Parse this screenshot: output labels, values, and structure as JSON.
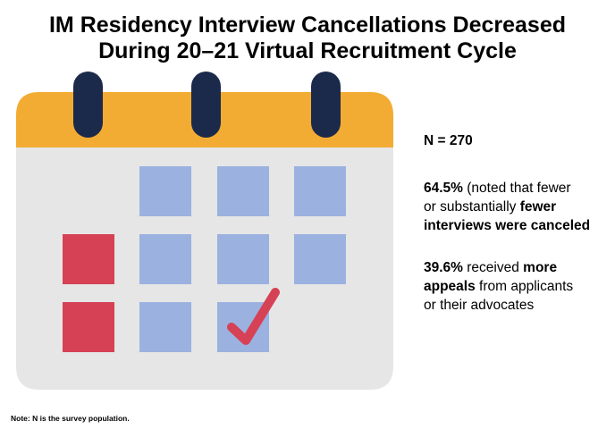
{
  "title": {
    "line1": "IM Residency Interview Cancellations Decreased",
    "line2": "During 20–21 Virtual Recruitment Cycle"
  },
  "stats": {
    "n_label": "N = 270",
    "stat1": {
      "value": "64.5%",
      "pre": " (noted that fewer",
      "line2_pre": "or substantially ",
      "line2_bold": "fewer",
      "line3_bold": "interviews were canceled"
    },
    "stat2": {
      "value": "39.6%",
      "pre": " received ",
      "bold1": "more",
      "line2_bold": "appeals",
      "line2_rest": " from applicants",
      "line3": "or their advocates"
    }
  },
  "note": "Note: N is the survey population.",
  "colors": {
    "calendar_header": "#F3AC33",
    "calendar_body": "#E6E6E6",
    "ring": "#1B2A4A",
    "blue_cell": "#9BB1E0",
    "red_cell": "#D64155",
    "check": "#D64155"
  },
  "icons": {
    "calendar": "calendar-icon",
    "check": "checkmark-icon"
  }
}
